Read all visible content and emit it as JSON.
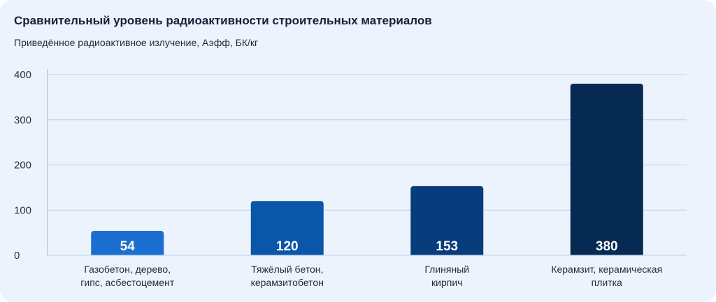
{
  "chart_data": {
    "type": "bar",
    "title": "Сравнительный уровень радиоактивности строительных материалов",
    "subtitle": "Приведённое радиоактивное излучение, Аэфф, БК/кг",
    "xlabel": "",
    "ylabel": "",
    "ylim": [
      0,
      400
    ],
    "yticks": [
      0,
      100,
      200,
      300,
      400
    ],
    "grid": true,
    "categories": [
      [
        "Газобетон, дерево,",
        "гипс, асбестоцемент"
      ],
      [
        "Тяжёлый бетон,",
        "керамзитобетон"
      ],
      [
        "Глиняный",
        "кирпич"
      ],
      [
        "Керамзит, керамическая",
        "плитка"
      ]
    ],
    "values": [
      54,
      120,
      153,
      380
    ],
    "colors": [
      "#1a6fd0",
      "#0a56a8",
      "#073d7c",
      "#062a52"
    ]
  }
}
